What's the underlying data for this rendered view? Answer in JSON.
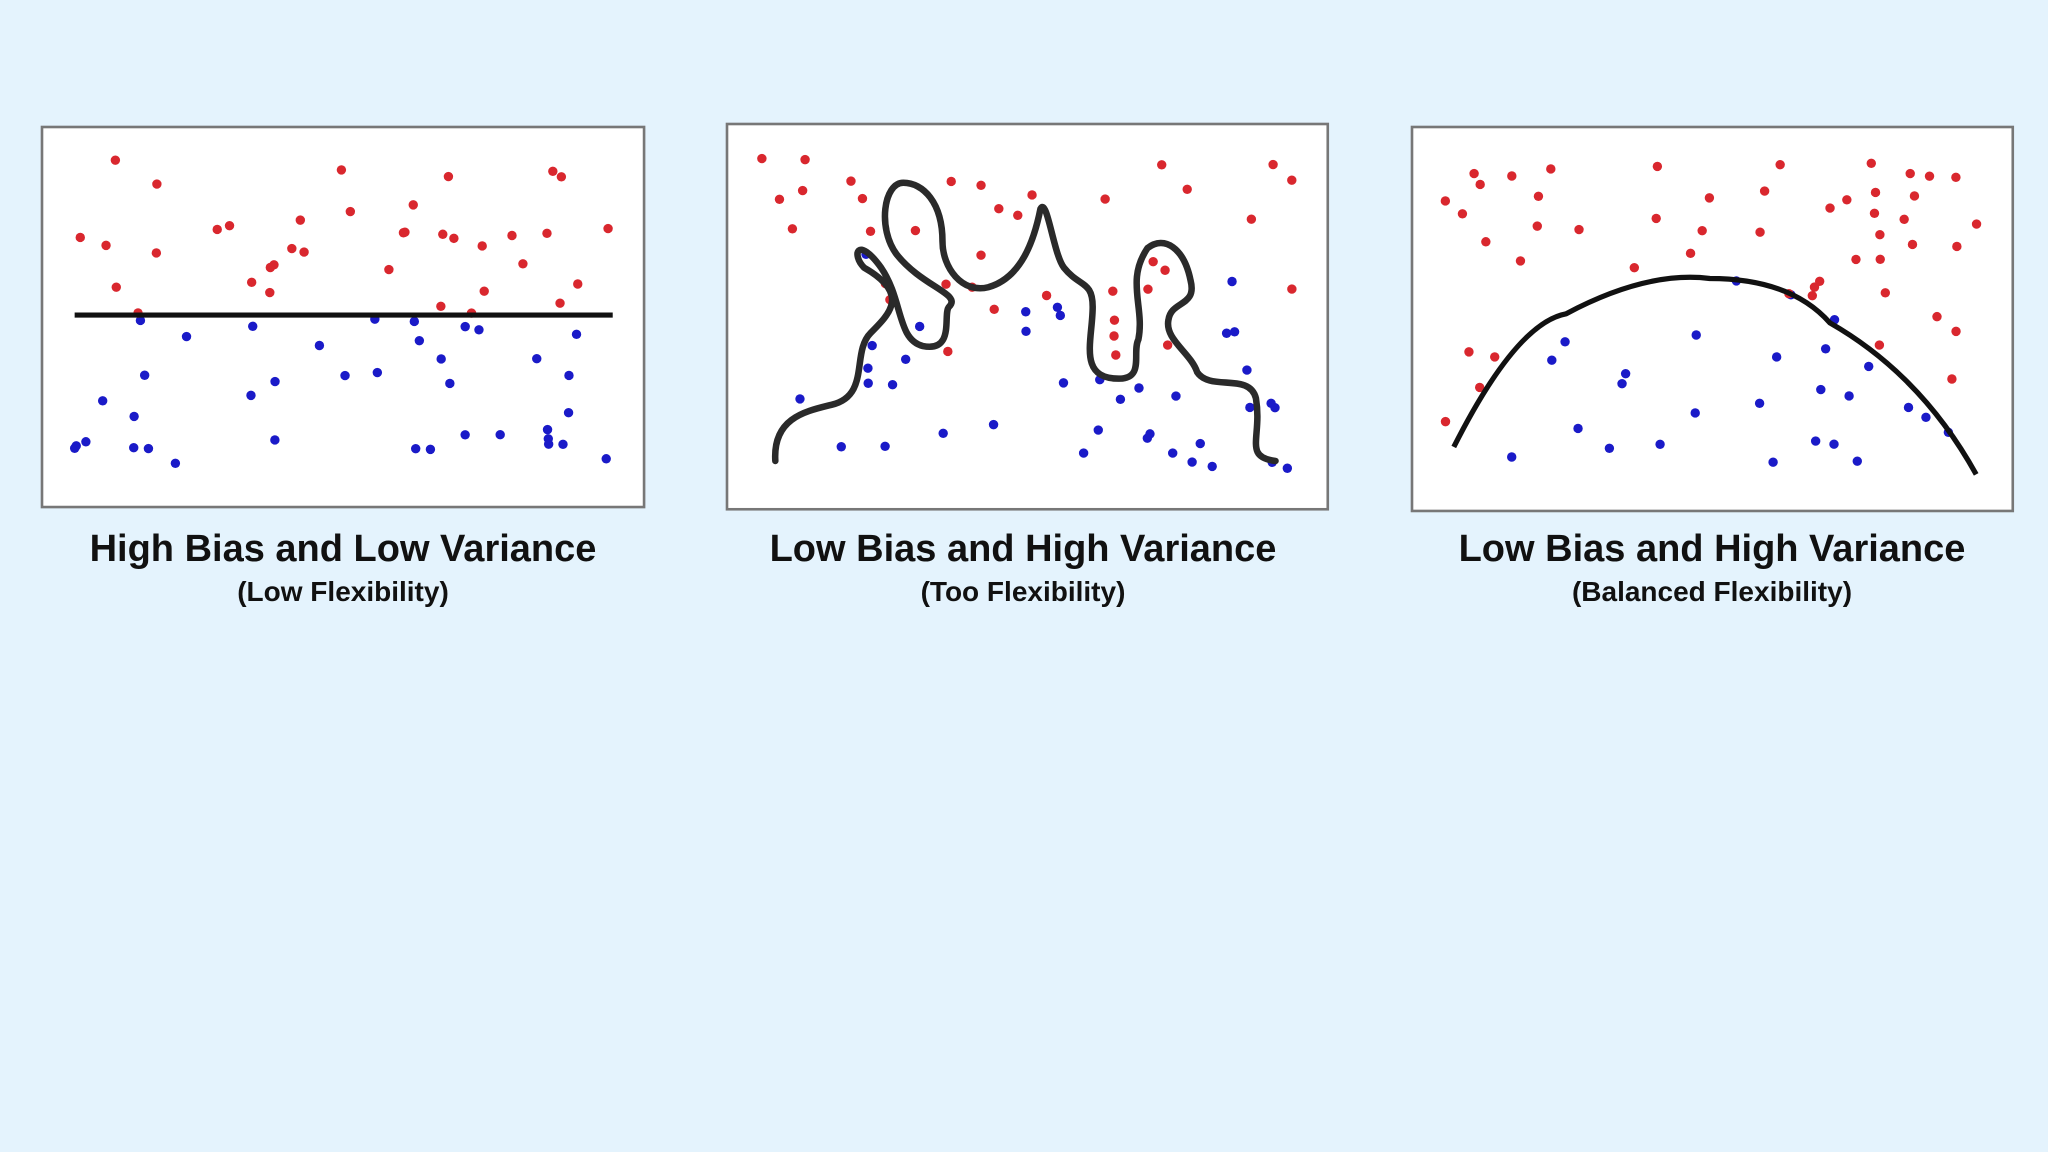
{
  "panels": [
    {
      "title": "High Bias and Low Variance",
      "subtitle": "(Low Flexibility)"
    },
    {
      "title": "Low Bias and High Variance",
      "subtitle": "(Too Flexibility)"
    },
    {
      "title": "Low Bias and High Variance",
      "subtitle": "(Balanced Flexibility)"
    }
  ]
}
